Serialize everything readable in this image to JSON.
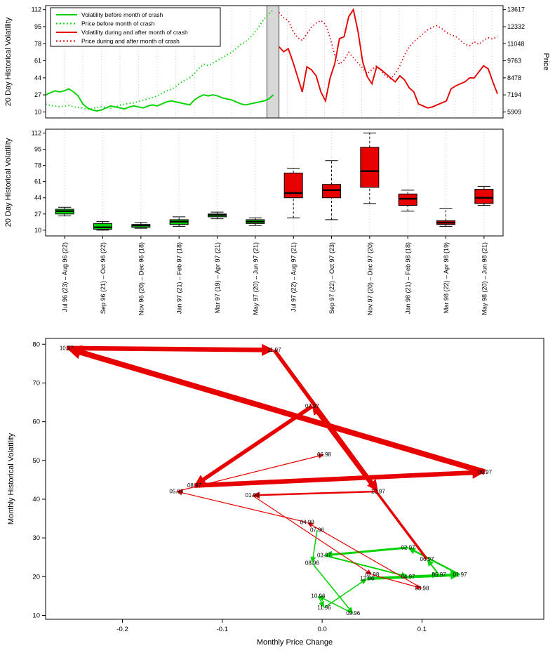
{
  "colors": {
    "green": "#00d300",
    "red": "#e60000",
    "band_fill": "#d8d8d8",
    "band_edge": "#4a4a4a",
    "grid": "#bfbfbf",
    "axis": "#000000"
  },
  "chart_data": [
    {
      "type": "line",
      "panel": "top-timeseries",
      "y_left": {
        "label": "20 Day Historical Volatility",
        "ticks": [
          10,
          27,
          44,
          61,
          78,
          95,
          112
        ],
        "range": [
          4,
          116
        ]
      },
      "y_right": {
        "label": "Price",
        "ticks": [
          5909,
          7194,
          8478,
          9763,
          11048,
          12332,
          13617
        ]
      },
      "x": {
        "range_months": [
          0,
          24.6
        ],
        "gridline_months": 24
      },
      "crash_band_months": [
        11.9,
        12.55
      ],
      "legend": [
        {
          "label": "Volatility before month of crash",
          "color": "green",
          "style": "solid"
        },
        {
          "label": "Price before month of crash",
          "color": "green",
          "style": "dotted"
        },
        {
          "label": "Volatility during and after month of crash",
          "color": "red",
          "style": "solid"
        },
        {
          "label": "Price during and after month of crash",
          "color": "red",
          "style": "dotted"
        }
      ],
      "series": [
        {
          "name": "Volatility before month of crash",
          "axis": "left",
          "color": "green",
          "style": "solid",
          "start_month": 0,
          "step": 0.25,
          "values": [
            27,
            29,
            31,
            30,
            31,
            33,
            30,
            26,
            18,
            14,
            12,
            11,
            12,
            14,
            16,
            15,
            14,
            13,
            15,
            16,
            15,
            14,
            16,
            17,
            16,
            18,
            20,
            21,
            20,
            19,
            18,
            17,
            22,
            25,
            27,
            26,
            27,
            26,
            24,
            23,
            22,
            20,
            18,
            17,
            18,
            19,
            20,
            21,
            23,
            27
          ]
        },
        {
          "name": "Price before month of crash",
          "axis": "right",
          "color": "green",
          "style": "dotted",
          "start_month": 0,
          "step": 0.25,
          "values": [
            6500,
            6400,
            6350,
            6300,
            6350,
            6400,
            6300,
            6250,
            6200,
            6100,
            6150,
            6250,
            6300,
            6250,
            6200,
            6300,
            6400,
            6500,
            6550,
            6600,
            6700,
            6800,
            6900,
            7000,
            7100,
            7300,
            7500,
            7600,
            7800,
            8100,
            8300,
            8500,
            8800,
            9200,
            9500,
            9400,
            9600,
            9800,
            10000,
            10200,
            10400,
            10700,
            11000,
            11200,
            11500,
            11900,
            12400,
            12900,
            13300,
            13617
          ]
        },
        {
          "name": "Volatility during and after month of crash",
          "axis": "left",
          "color": "red",
          "style": "solid",
          "start_month": 12.55,
          "step": 0.25,
          "values": [
            75,
            70,
            73,
            60,
            45,
            30,
            55,
            52,
            46,
            30,
            21,
            44,
            58,
            83,
            85,
            105,
            112,
            90,
            60,
            45,
            38,
            55,
            52,
            48,
            44,
            40,
            46,
            42,
            34,
            30,
            18,
            16,
            14,
            15,
            17,
            19,
            21,
            33,
            36,
            38,
            40,
            44,
            44,
            50,
            56,
            53,
            40,
            28
          ]
        },
        {
          "name": "Price during and after month of crash",
          "axis": "right",
          "color": "red",
          "style": "dotted",
          "start_month": 12.55,
          "step": 0.25,
          "values": [
            13400,
            13000,
            12800,
            12000,
            11500,
            11300,
            11800,
            12300,
            12600,
            12800,
            12500,
            11500,
            10200,
            9500,
            9800,
            10400,
            10000,
            9600,
            9200,
            8800,
            9100,
            9400,
            9000,
            8600,
            8400,
            8800,
            9400,
            10200,
            10800,
            11200,
            11500,
            11800,
            12100,
            12300,
            12400,
            12200,
            11900,
            11700,
            11600,
            11300,
            11000,
            10900,
            11200,
            11000,
            11300,
            11500,
            11400,
            11600
          ]
        }
      ]
    },
    {
      "type": "boxplot",
      "panel": "middle-boxplot",
      "y": {
        "label": "20 Day Historical Volatility",
        "ticks": [
          10,
          27,
          44,
          61,
          78,
          95,
          112
        ],
        "range": [
          4,
          116
        ]
      },
      "boxes": [
        {
          "label": "Jul 96 (23) – Aug 96 (22)",
          "color": "green",
          "whisker_low": 25,
          "q1": 27,
          "median": 30,
          "q3": 32,
          "whisker_high": 34
        },
        {
          "label": "Sep 96 (21) – Oct 96 (22)",
          "color": "green",
          "whisker_low": 10,
          "q1": 11,
          "median": 13,
          "q3": 17,
          "whisker_high": 19
        },
        {
          "label": "Nov 96 (20) – Dec 96 (18)",
          "color": "green",
          "whisker_low": 12,
          "q1": 13,
          "median": 15,
          "q3": 16,
          "whisker_high": 18
        },
        {
          "label": "Jan 97 (21) – Feb 97 (18)",
          "color": "green",
          "whisker_low": 14,
          "q1": 16,
          "median": 19,
          "q3": 21,
          "whisker_high": 24
        },
        {
          "label": "Mar 97 (19) – Apr 97 (21)",
          "color": "green",
          "whisker_low": 22,
          "q1": 24,
          "median": 26,
          "q3": 27,
          "whisker_high": 29
        },
        {
          "label": "May 97 (20) – Jun 97 (21)",
          "color": "green",
          "whisker_low": 15,
          "q1": 17,
          "median": 19,
          "q3": 21,
          "whisker_high": 23
        },
        {
          "label": "Jul 97 (22) – Aug 97 (21)",
          "color": "red",
          "whisker_low": 23,
          "q1": 44,
          "median": 49,
          "q3": 70,
          "whisker_high": 75
        },
        {
          "label": "Sep 97 (22) – Oct 97 (23)",
          "color": "red",
          "whisker_low": 21,
          "q1": 44,
          "median": 52,
          "q3": 58,
          "whisker_high": 83
        },
        {
          "label": "Nov 97 (20) – Dec 97 (20)",
          "color": "red",
          "whisker_low": 38,
          "q1": 55,
          "median": 72,
          "q3": 97,
          "whisker_high": 112
        },
        {
          "label": "Jan 98 (21) – Feb 98 (18)",
          "color": "red",
          "whisker_low": 30,
          "q1": 36,
          "median": 43,
          "q3": 48,
          "whisker_high": 52
        },
        {
          "label": "Mar 98 (22) – Apr 98 (19)",
          "color": "red",
          "whisker_low": 14,
          "q1": 16,
          "median": 18,
          "q3": 20,
          "whisker_high": 33
        },
        {
          "label": "May 98 (20) – Jun 98 (21)",
          "color": "red",
          "whisker_low": 36,
          "q1": 38,
          "median": 44,
          "q3": 53,
          "whisker_high": 56
        }
      ]
    },
    {
      "type": "trajectory",
      "panel": "bottom-phase-plot",
      "x": {
        "label": "Monthly Price Change",
        "ticks": [
          -0.2,
          -0.1,
          0,
          0.1
        ],
        "range": [
          -0.277,
          0.222
        ]
      },
      "y": {
        "label": "Monthly Historical Volatility",
        "ticks": [
          10,
          20,
          30,
          40,
          50,
          60,
          70,
          80
        ],
        "range": [
          9,
          81.5
        ]
      },
      "before_color": "green",
      "after_color": "red",
      "first_after_label": "07.97",
      "points": [
        {
          "label": "07.96",
          "x": -0.005,
          "y": 32
        },
        {
          "label": "08.96",
          "x": -0.01,
          "y": 23.5
        },
        {
          "label": "09.96",
          "x": 0.031,
          "y": 10.5
        },
        {
          "label": "10.96",
          "x": -0.004,
          "y": 15
        },
        {
          "label": "11.96",
          "x": 0.002,
          "y": 12
        },
        {
          "label": "12.96",
          "x": 0.045,
          "y": 19.5
        },
        {
          "label": "01.97",
          "x": 0.138,
          "y": 20.5
        },
        {
          "label": "02.97",
          "x": 0.086,
          "y": 27.5
        },
        {
          "label": "03.97",
          "x": 0.002,
          "y": 25.5
        },
        {
          "label": "04.97",
          "x": 0.086,
          "y": 20
        },
        {
          "label": "05.97",
          "x": 0.117,
          "y": 20.5
        },
        {
          "label": "06.97",
          "x": 0.105,
          "y": 24.5
        },
        {
          "label": "07.97",
          "x": -0.01,
          "y": 64
        },
        {
          "label": "08.97",
          "x": -0.128,
          "y": 43.5
        },
        {
          "label": "09.97",
          "x": 0.163,
          "y": 47
        },
        {
          "label": "10.97",
          "x": -0.256,
          "y": 79
        },
        {
          "label": "11.97",
          "x": -0.048,
          "y": 78.5
        },
        {
          "label": "12.97",
          "x": 0.056,
          "y": 42
        },
        {
          "label": "01.98",
          "x": -0.07,
          "y": 41
        },
        {
          "label": "02.98",
          "x": 0.05,
          "y": 20.5
        },
        {
          "label": "03.98",
          "x": 0.1,
          "y": 17
        },
        {
          "label": "04.98",
          "x": -0.015,
          "y": 34
        },
        {
          "label": "05.98",
          "x": -0.146,
          "y": 42
        },
        {
          "label": "06.98",
          "x": 0.002,
          "y": 51.5
        }
      ],
      "segment_widths": [
        1.5,
        1.5,
        1.5,
        1.5,
        1.5,
        4,
        2.5,
        3,
        2,
        2,
        2,
        3.5,
        5.5,
        6.5,
        8,
        6.5,
        5.5,
        2.5,
        1.2,
        1.2,
        1.2,
        1.2,
        1.2
      ]
    }
  ]
}
